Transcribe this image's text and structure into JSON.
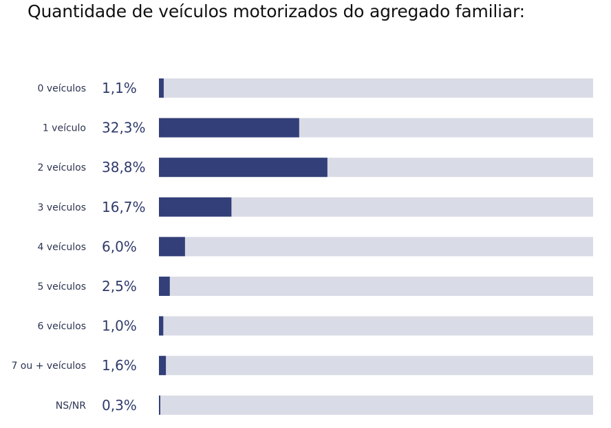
{
  "chart_data": {
    "type": "bar",
    "orientation": "horizontal",
    "title": "Quantidade de veículos motorizados do agregado familiar:",
    "categories": [
      "0 veículos",
      "1 veículo",
      "2 veículos",
      "3 veículos",
      "4 veículos",
      "5 veículos",
      "6 veículos",
      "7 ou + veículos",
      "NS/NR"
    ],
    "values": [
      1.1,
      32.3,
      38.8,
      16.7,
      6.0,
      2.5,
      1.0,
      1.6,
      0.3
    ],
    "value_labels": [
      "1,1%",
      "32,3%",
      "38,8%",
      "16,7%",
      "6,0%",
      "2,5%",
      "1,0%",
      "1,6%",
      "0,3%"
    ],
    "xlim": [
      0,
      100
    ],
    "unit": "%",
    "grid": false,
    "colors": {
      "bar": "#323f78",
      "track": "#d9dbe6"
    }
  }
}
